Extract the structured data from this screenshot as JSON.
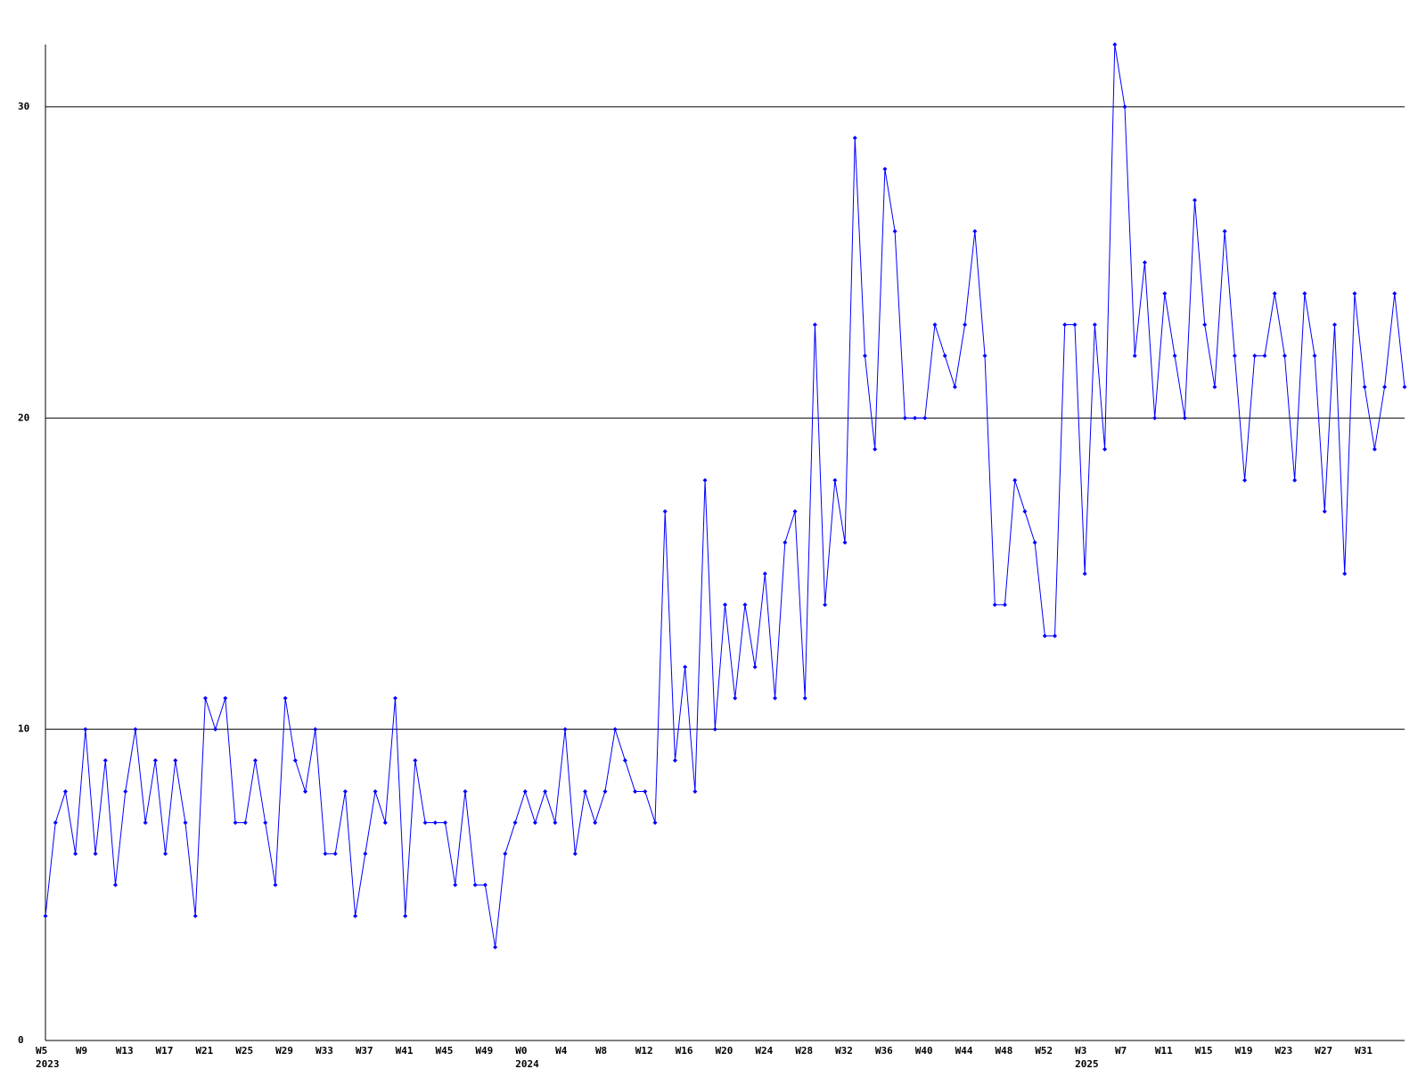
{
  "chart_data": {
    "type": "line",
    "categories": [
      "W5",
      null,
      null,
      null,
      "W9",
      null,
      null,
      null,
      "W13",
      null,
      null,
      null,
      "W17",
      null,
      null,
      null,
      "W21",
      null,
      null,
      null,
      "W25",
      null,
      null,
      null,
      "W29",
      null,
      null,
      null,
      "W33",
      null,
      null,
      null,
      "W37",
      null,
      null,
      null,
      "W41",
      null,
      null,
      null,
      "W45",
      null,
      null,
      null,
      "W49",
      null,
      null,
      null,
      "W0",
      null,
      null,
      null,
      "W4",
      null,
      null,
      null,
      "W8",
      null,
      null,
      null,
      "W12",
      null,
      null,
      null,
      "W16",
      null,
      null,
      null,
      "W20",
      null,
      null,
      null,
      "W24",
      null,
      null,
      null,
      "W28",
      null,
      null,
      null,
      "W32",
      null,
      null,
      null,
      "W36",
      null,
      null,
      null,
      "W40",
      null,
      null,
      null,
      "W44",
      null,
      null,
      null,
      "W48",
      null,
      null,
      null,
      "W52",
      null,
      null,
      null,
      "W3",
      null,
      null,
      null,
      "W7",
      null,
      null,
      null,
      "W11",
      null,
      null,
      null,
      "W15",
      null,
      null,
      null,
      "W19",
      null,
      null,
      null,
      "W23",
      null,
      null,
      null,
      "W27",
      null,
      null,
      null,
      "W31",
      null,
      null,
      null,
      null
    ],
    "year_categories": [
      "2023",
      null,
      null,
      null,
      null,
      null,
      null,
      null,
      null,
      null,
      null,
      null,
      null,
      null,
      null,
      null,
      null,
      null,
      null,
      null,
      null,
      null,
      null,
      null,
      null,
      null,
      null,
      null,
      null,
      null,
      null,
      null,
      null,
      null,
      null,
      null,
      null,
      null,
      null,
      null,
      null,
      null,
      null,
      null,
      null,
      null,
      null,
      null,
      "2024",
      null,
      null,
      null,
      null,
      null,
      null,
      null,
      null,
      null,
      null,
      null,
      null,
      null,
      null,
      null,
      null,
      null,
      null,
      null,
      null,
      null,
      null,
      null,
      null,
      null,
      null,
      null,
      null,
      null,
      null,
      null,
      null,
      null,
      null,
      null,
      null,
      null,
      null,
      null,
      null,
      null,
      null,
      null,
      null,
      null,
      null,
      null,
      null,
      null,
      null,
      null,
      null,
      null,
      null,
      null,
      "2025",
      null,
      null,
      null,
      null,
      null,
      null,
      null,
      null,
      null,
      null,
      null,
      null,
      null,
      null,
      null,
      null,
      null,
      null,
      null,
      null,
      null,
      null,
      null,
      null,
      null,
      null,
      null,
      null,
      null,
      null,
      null
    ],
    "series": [
      {
        "color": "#0000ff",
        "values": [
          4,
          7,
          8,
          6,
          10,
          6,
          9,
          5,
          8,
          10,
          7,
          9,
          6,
          9,
          7,
          4,
          11,
          10,
          11,
          7,
          7,
          9,
          7,
          5,
          11,
          9,
          8,
          10,
          6,
          6,
          8,
          4,
          6,
          8,
          7,
          11,
          4,
          9,
          7,
          7,
          7,
          5,
          8,
          5,
          5,
          3,
          6,
          7,
          8,
          7,
          8,
          7,
          10,
          6,
          8,
          7,
          8,
          10,
          9,
          8,
          8,
          7,
          17,
          9,
          12,
          8,
          18,
          10,
          14,
          11,
          14,
          12,
          15,
          11,
          16,
          17,
          11,
          23,
          14,
          18,
          16,
          29,
          22,
          19,
          28,
          26,
          20,
          20,
          20,
          23,
          22,
          21,
          23,
          26,
          22,
          14,
          14,
          18,
          17,
          16,
          13,
          13,
          23,
          23,
          15,
          23,
          19,
          32,
          30,
          22,
          25,
          20,
          24,
          22,
          20,
          27,
          23,
          21,
          26,
          22,
          18,
          22,
          22,
          24,
          22,
          18,
          24,
          22,
          17,
          23,
          15,
          24,
          21,
          19,
          21,
          24,
          21
        ]
      }
    ],
    "ylim": [
      0,
      32
    ],
    "yticks": [
      0,
      10,
      20,
      30
    ],
    "grid": true
  }
}
